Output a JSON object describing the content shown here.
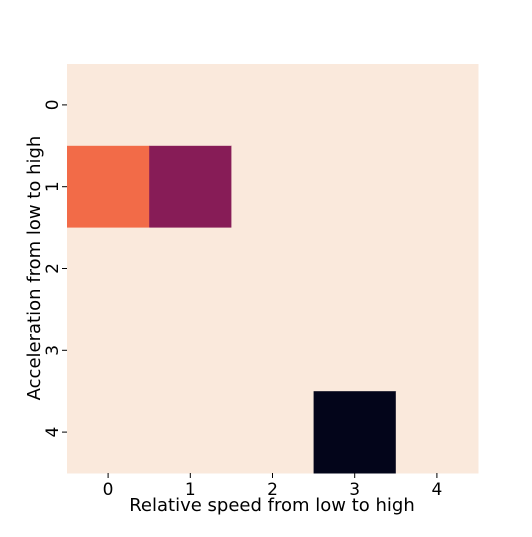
{
  "chart_data": {
    "type": "heatmap",
    "title": "",
    "xlabel": "Relative speed from low to high",
    "ylabel": "Acceleration from low to high",
    "x_categories": [
      "0",
      "1",
      "2",
      "3",
      "4"
    ],
    "y_categories": [
      "0",
      "1",
      "2",
      "3",
      "4"
    ],
    "values": [
      [
        0,
        0,
        0,
        0,
        0
      ],
      [
        0.45,
        0.8,
        0,
        0,
        0
      ],
      [
        0,
        0,
        0,
        0,
        0
      ],
      [
        0,
        0,
        0,
        0,
        0
      ],
      [
        0,
        0,
        0,
        1.0,
        0
      ]
    ],
    "colormap": "rocket_r",
    "colorbar": false,
    "grid": false
  },
  "colors": {
    "background": "#fae9dc",
    "low": "#fae9dc",
    "mid": "#f26b48",
    "high": "#871c57",
    "max": "#03051a"
  }
}
